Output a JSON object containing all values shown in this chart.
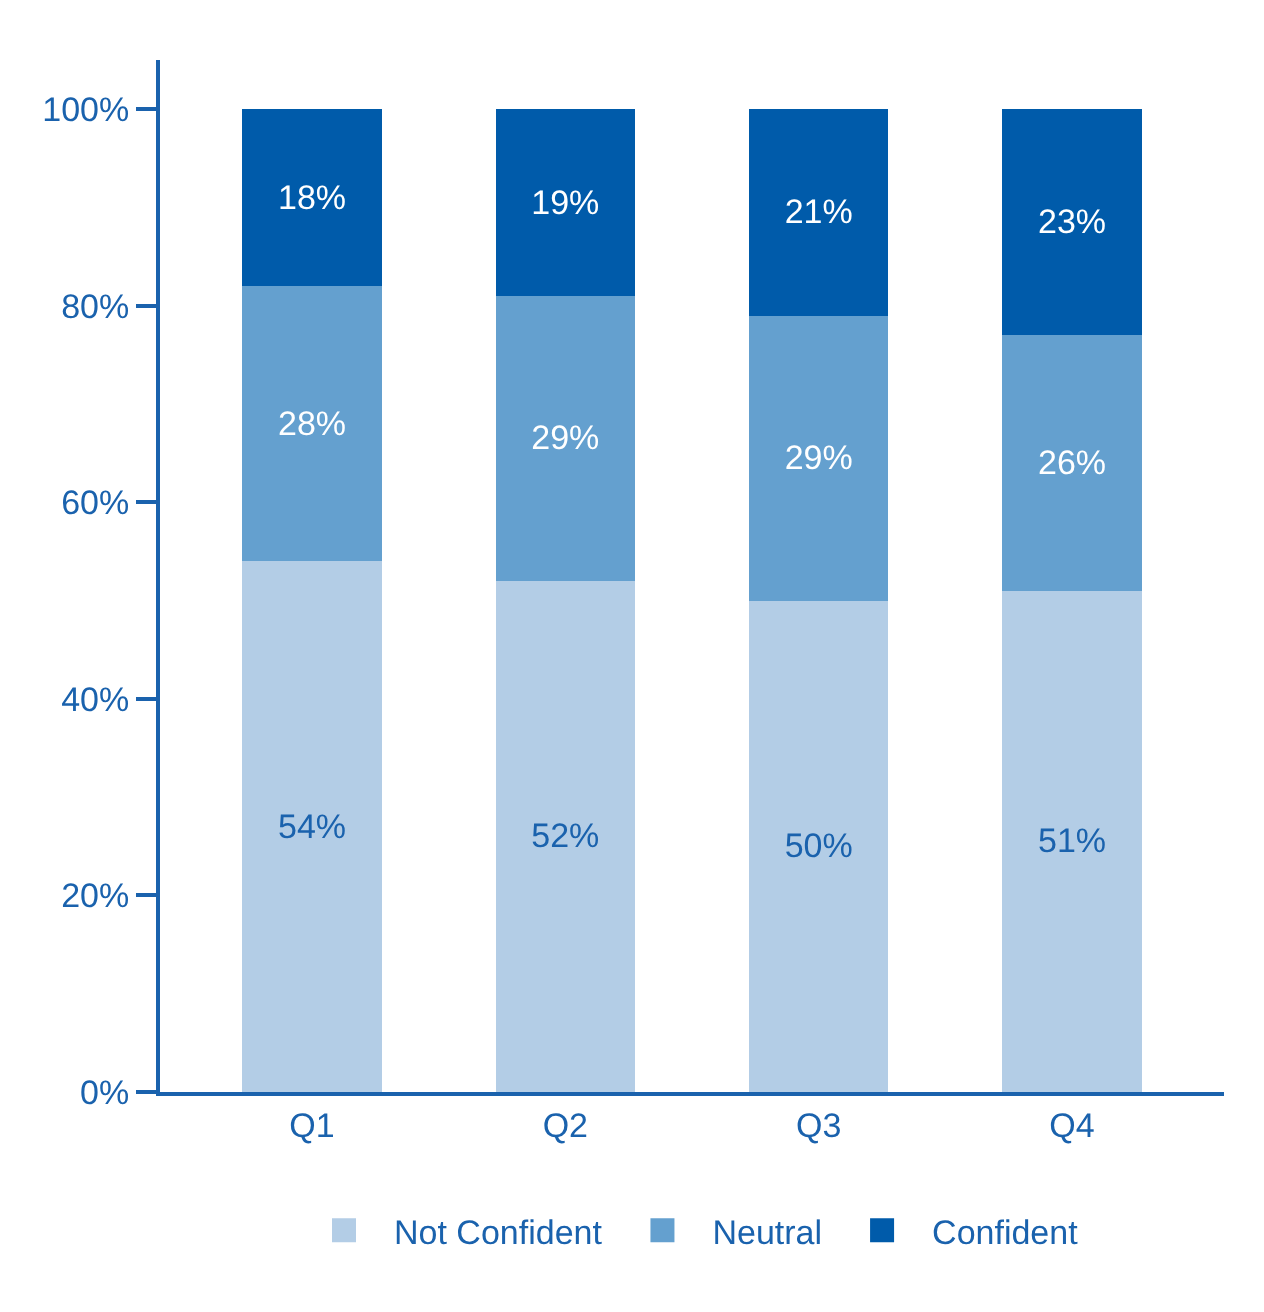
{
  "chart_data": {
    "type": "bar",
    "stacked": true,
    "categories": [
      "Q1",
      "Q2",
      "Q3",
      "Q4"
    ],
    "series": [
      {
        "name": "Not Confident",
        "color": "#b3cde6",
        "values": [
          54,
          52,
          50,
          51
        ],
        "value_labels": [
          "54%",
          "52%",
          "50%",
          "51%"
        ]
      },
      {
        "name": "Neutral",
        "color": "#64a0cf",
        "values": [
          28,
          29,
          29,
          26
        ],
        "value_labels": [
          "28%",
          "29%",
          "29%",
          "26%"
        ]
      },
      {
        "name": "Confident",
        "color": "#005baa",
        "values": [
          18,
          19,
          21,
          23
        ],
        "value_labels": [
          "18%",
          "19%",
          "21%",
          "23%"
        ]
      }
    ],
    "ylim": [
      0,
      105
    ],
    "yticks": [
      {
        "value": 0,
        "label": "0%"
      },
      {
        "value": 20,
        "label": "20%"
      },
      {
        "value": 40,
        "label": "40%"
      },
      {
        "value": 60,
        "label": "60%"
      },
      {
        "value": 80,
        "label": "80%"
      },
      {
        "value": 100,
        "label": "100%"
      }
    ],
    "legend": "bottom"
  }
}
